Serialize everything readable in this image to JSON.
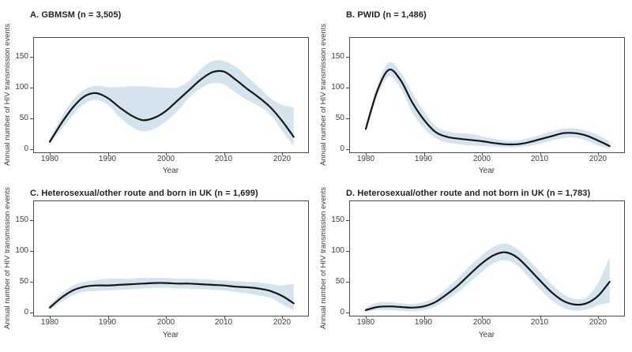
{
  "figure": {
    "y_axis_label": "Annual number of HIV transmission events",
    "x_axis_label": "Year",
    "colors": {
      "band": "#d3e4ef",
      "line": "#161616",
      "axis": "#4a4a4a",
      "text": "#3a3a3a"
    }
  },
  "axes": {
    "x_ticks": [
      "1980",
      "1990",
      "2000",
      "2010",
      "2020"
    ],
    "y_ticks": [
      "0",
      "50",
      "100",
      "150"
    ],
    "x_range": [
      1977,
      2025
    ],
    "y_range": [
      -5,
      182
    ],
    "grid": false,
    "legend": "none"
  },
  "chart_data": [
    {
      "id": "A",
      "type": "line",
      "title": "A. GBMSM (n = 3,505)",
      "n": 3505,
      "xlabel": "Year",
      "ylabel": "Annual number of HIV transmission events",
      "xlim": [
        1977,
        2025
      ],
      "ylim": [
        -5,
        182
      ],
      "years": [
        1980,
        1982,
        1984,
        1986,
        1988,
        1990,
        1992,
        1994,
        1996,
        1998,
        2000,
        2002,
        2004,
        2006,
        2008,
        2010,
        2012,
        2014,
        2016,
        2018,
        2020,
        2022
      ],
      "series": [
        {
          "name": "mean",
          "values": [
            12,
            42,
            68,
            86,
            91,
            83,
            68,
            55,
            47,
            51,
            62,
            79,
            96,
            113,
            125,
            126,
            113,
            98,
            84,
            68,
            46,
            20
          ]
        },
        {
          "name": "lower_95",
          "values": [
            7,
            32,
            55,
            74,
            80,
            72,
            52,
            37,
            29,
            33,
            45,
            62,
            84,
            99,
            107,
            105,
            92,
            80,
            70,
            56,
            30,
            5
          ]
        },
        {
          "name": "upper_95",
          "values": [
            17,
            52,
            80,
            97,
            103,
            101,
            101,
            102,
            102,
            101,
            100,
            100,
            111,
            130,
            143,
            143,
            134,
            118,
            101,
            83,
            72,
            68
          ]
        }
      ]
    },
    {
      "id": "B",
      "type": "line",
      "title": "B. PWID (n = 1,486)",
      "n": 1486,
      "xlabel": "Year",
      "ylabel": "Annual number of HIV transmission events",
      "xlim": [
        1977,
        2025
      ],
      "ylim": [
        -5,
        182
      ],
      "years": [
        1980,
        1982,
        1984,
        1986,
        1988,
        1990,
        1992,
        1994,
        1996,
        1998,
        2000,
        2002,
        2004,
        2006,
        2008,
        2010,
        2012,
        2014,
        2016,
        2018,
        2020,
        2022
      ],
      "series": [
        {
          "name": "mean",
          "values": [
            33,
            95,
            129,
            112,
            76,
            48,
            28,
            20,
            17,
            15,
            13,
            10,
            8,
            8,
            11,
            16,
            21,
            26,
            26,
            22,
            14,
            5
          ]
        },
        {
          "name": "lower_95",
          "values": [
            27,
            86,
            118,
            99,
            60,
            34,
            18,
            11,
            8,
            6,
            5,
            4,
            3,
            3,
            5,
            9,
            14,
            18,
            19,
            14,
            6,
            0
          ]
        },
        {
          "name": "upper_95",
          "values": [
            39,
            104,
            141,
            125,
            92,
            62,
            38,
            29,
            26,
            25,
            21,
            17,
            14,
            14,
            18,
            23,
            29,
            33,
            34,
            30,
            23,
            13
          ]
        }
      ]
    },
    {
      "id": "C",
      "type": "line",
      "title": "C. Heterosexual/other route and born in UK (n = 1,699)",
      "n": 1699,
      "xlabel": "Year",
      "ylabel": "Annual number of HIV transmission events",
      "xlim": [
        1977,
        2025
      ],
      "ylim": [
        -5,
        182
      ],
      "years": [
        1980,
        1982,
        1984,
        1986,
        1988,
        1990,
        1992,
        1994,
        1996,
        1998,
        2000,
        2002,
        2004,
        2006,
        2008,
        2010,
        2012,
        2014,
        2016,
        2018,
        2020,
        2022
      ],
      "series": [
        {
          "name": "mean",
          "values": [
            8,
            24,
            36,
            42,
            44,
            44,
            45,
            46,
            47,
            48,
            48,
            47,
            47,
            46,
            45,
            44,
            42,
            41,
            39,
            35,
            27,
            15
          ]
        },
        {
          "name": "lower_95",
          "values": [
            4,
            17,
            28,
            34,
            35,
            36,
            37,
            38,
            39,
            40,
            40,
            39,
            39,
            38,
            37,
            36,
            33,
            31,
            28,
            24,
            14,
            3
          ]
        },
        {
          "name": "upper_95",
          "values": [
            13,
            31,
            44,
            50,
            53,
            55,
            55,
            55,
            56,
            56,
            56,
            55,
            55,
            54,
            53,
            52,
            51,
            50,
            49,
            46,
            44,
            47
          ]
        }
      ]
    },
    {
      "id": "D",
      "type": "line",
      "title": "D. Heterosexual/other route and not born in UK (n = 1,783)",
      "n": 1783,
      "xlabel": "Year",
      "ylabel": "Annual number of HIV transmission events",
      "xlim": [
        1977,
        2025
      ],
      "ylim": [
        -5,
        182
      ],
      "years": [
        1980,
        1982,
        1984,
        1986,
        1988,
        1990,
        1992,
        1994,
        1996,
        1998,
        2000,
        2002,
        2004,
        2006,
        2008,
        2010,
        2012,
        2014,
        2016,
        2018,
        2020,
        2022
      ],
      "series": [
        {
          "name": "mean",
          "values": [
            4,
            9,
            10,
            9,
            8,
            10,
            17,
            30,
            45,
            63,
            80,
            93,
            98,
            90,
            72,
            52,
            33,
            19,
            13,
            15,
            27,
            50
          ]
        },
        {
          "name": "lower_95",
          "values": [
            1,
            4,
            4,
            3,
            2,
            4,
            10,
            21,
            34,
            50,
            66,
            80,
            85,
            77,
            58,
            38,
            20,
            8,
            3,
            5,
            12,
            16
          ]
        },
        {
          "name": "upper_95",
          "values": [
            8,
            16,
            17,
            15,
            14,
            17,
            25,
            40,
            57,
            76,
            93,
            107,
            112,
            104,
            86,
            66,
            46,
            30,
            22,
            25,
            48,
            90
          ]
        }
      ]
    }
  ]
}
